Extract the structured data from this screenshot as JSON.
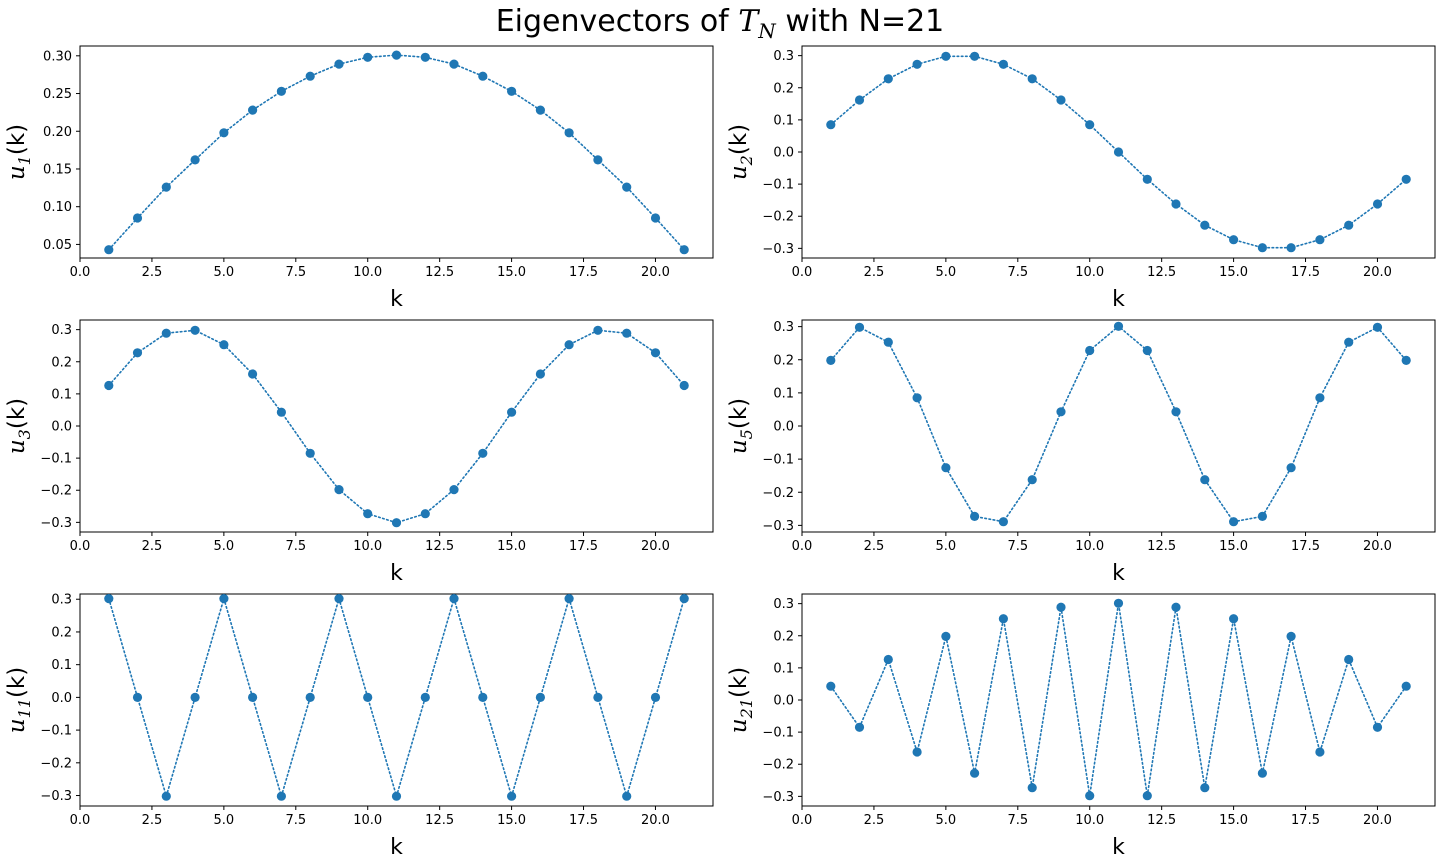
{
  "figure": {
    "title_prefix": "Eigenvectors of ",
    "title_symbol": "T",
    "title_subscript": "N",
    "title_suffix": " with N=21"
  },
  "colors": {
    "series": "#1f77b4",
    "axis": "#000000"
  },
  "chart_data": [
    {
      "type": "line",
      "style": "dotted-with-markers",
      "xlabel": "k",
      "ylabel_symbol": "u",
      "ylabel_subscript": "1",
      "ylabel_suffix": "(k)",
      "xlim": [
        0,
        22
      ],
      "ylim": [
        0.032,
        0.313
      ],
      "xticks": [
        "0.0",
        "2.5",
        "5.0",
        "7.5",
        "10.0",
        "12.5",
        "15.0",
        "17.5",
        "20.0"
      ],
      "yticks": [
        "0.05",
        "0.10",
        "0.15",
        "0.20",
        "0.25",
        "0.30"
      ],
      "x": [
        1,
        2,
        3,
        4,
        5,
        6,
        7,
        8,
        9,
        10,
        11,
        12,
        13,
        14,
        15,
        16,
        17,
        18,
        19,
        20,
        21
      ],
      "y": [
        0.043,
        0.085,
        0.126,
        0.162,
        0.198,
        0.228,
        0.253,
        0.273,
        0.289,
        0.298,
        0.301,
        0.298,
        0.289,
        0.273,
        0.253,
        0.228,
        0.198,
        0.162,
        0.126,
        0.085,
        0.043
      ]
    },
    {
      "type": "line",
      "style": "dotted-with-markers",
      "xlabel": "k",
      "ylabel_symbol": "u",
      "ylabel_subscript": "2",
      "ylabel_suffix": "(k)",
      "xlim": [
        0,
        22
      ],
      "ylim": [
        -0.33,
        0.33
      ],
      "xticks": [
        "0.0",
        "2.5",
        "5.0",
        "7.5",
        "10.0",
        "12.5",
        "15.0",
        "17.5",
        "20.0"
      ],
      "yticks": [
        "−0.3",
        "−0.2",
        "−0.1",
        "0.0",
        "0.1",
        "0.2",
        "0.3"
      ],
      "x": [
        1,
        2,
        3,
        4,
        5,
        6,
        7,
        8,
        9,
        10,
        11,
        12,
        13,
        14,
        15,
        16,
        17,
        18,
        19,
        20,
        21
      ],
      "y": [
        0.085,
        0.162,
        0.228,
        0.273,
        0.298,
        0.298,
        0.273,
        0.228,
        0.162,
        0.085,
        0.0,
        -0.085,
        -0.162,
        -0.228,
        -0.273,
        -0.298,
        -0.298,
        -0.273,
        -0.228,
        -0.162,
        -0.085
      ]
    },
    {
      "type": "line",
      "style": "dotted-with-markers",
      "xlabel": "k",
      "ylabel_symbol": "u",
      "ylabel_subscript": "3",
      "ylabel_suffix": "(k)",
      "xlim": [
        0,
        22
      ],
      "ylim": [
        -0.33,
        0.33
      ],
      "xticks": [
        "0.0",
        "2.5",
        "5.0",
        "7.5",
        "10.0",
        "12.5",
        "15.0",
        "17.5",
        "20.0"
      ],
      "yticks": [
        "−0.3",
        "−0.2",
        "−0.1",
        "0.0",
        "0.1",
        "0.2",
        "0.3"
      ],
      "x": [
        1,
        2,
        3,
        4,
        5,
        6,
        7,
        8,
        9,
        10,
        11,
        12,
        13,
        14,
        15,
        16,
        17,
        18,
        19,
        20,
        21
      ],
      "y": [
        0.126,
        0.228,
        0.289,
        0.298,
        0.253,
        0.162,
        0.043,
        -0.085,
        -0.198,
        -0.273,
        -0.301,
        -0.273,
        -0.198,
        -0.085,
        0.043,
        0.162,
        0.253,
        0.298,
        0.289,
        0.228,
        0.126
      ]
    },
    {
      "type": "line",
      "style": "dotted-with-markers",
      "xlabel": "k",
      "ylabel_symbol": "u",
      "ylabel_subscript": "5",
      "ylabel_suffix": "(k)",
      "xlim": [
        0,
        22
      ],
      "ylim": [
        -0.32,
        0.32
      ],
      "xticks": [
        "0.0",
        "2.5",
        "5.0",
        "7.5",
        "10.0",
        "12.5",
        "15.0",
        "17.5",
        "20.0"
      ],
      "yticks": [
        "−0.3",
        "−0.2",
        "−0.1",
        "0.0",
        "0.1",
        "0.2",
        "0.3"
      ],
      "x": [
        1,
        2,
        3,
        4,
        5,
        6,
        7,
        8,
        9,
        10,
        11,
        12,
        13,
        14,
        15,
        16,
        17,
        18,
        19,
        20,
        21
      ],
      "y": [
        0.198,
        0.298,
        0.253,
        0.085,
        -0.126,
        -0.273,
        -0.289,
        -0.162,
        0.043,
        0.228,
        0.301,
        0.228,
        0.043,
        -0.162,
        -0.289,
        -0.273,
        -0.126,
        0.085,
        0.253,
        0.298,
        0.198
      ]
    },
    {
      "type": "line",
      "style": "dotted-with-markers",
      "xlabel": "k",
      "ylabel_symbol": "u",
      "ylabel_subscript": "11",
      "ylabel_suffix": "(k)",
      "xlim": [
        0,
        22
      ],
      "ylim": [
        -0.332,
        0.316
      ],
      "xticks": [
        "0.0",
        "2.5",
        "5.0",
        "7.5",
        "10.0",
        "12.5",
        "15.0",
        "17.5",
        "20.0"
      ],
      "yticks": [
        "−0.3",
        "−0.2",
        "−0.1",
        "0.0",
        "0.1",
        "0.2",
        "0.3"
      ],
      "x": [
        1,
        2,
        3,
        4,
        5,
        6,
        7,
        8,
        9,
        10,
        11,
        12,
        13,
        14,
        15,
        16,
        17,
        18,
        19,
        20,
        21
      ],
      "y": [
        0.302,
        0.0,
        -0.302,
        0.0,
        0.302,
        0.0,
        -0.302,
        0.0,
        0.302,
        0.0,
        -0.302,
        0.0,
        0.302,
        0.0,
        -0.302,
        0.0,
        0.302,
        0.0,
        -0.302,
        0.0,
        0.302
      ]
    },
    {
      "type": "line",
      "style": "dotted-with-markers",
      "xlabel": "k",
      "ylabel_symbol": "u",
      "ylabel_subscript": "21",
      "ylabel_suffix": "(k)",
      "xlim": [
        0,
        22
      ],
      "ylim": [
        -0.33,
        0.33
      ],
      "xticks": [
        "0.0",
        "2.5",
        "5.0",
        "7.5",
        "10.0",
        "12.5",
        "15.0",
        "17.5",
        "20.0"
      ],
      "yticks": [
        "−0.3",
        "−0.2",
        "−0.1",
        "0.0",
        "0.1",
        "0.2",
        "0.3"
      ],
      "x": [
        1,
        2,
        3,
        4,
        5,
        6,
        7,
        8,
        9,
        10,
        11,
        12,
        13,
        14,
        15,
        16,
        17,
        18,
        19,
        20,
        21
      ],
      "y": [
        0.043,
        -0.085,
        0.126,
        -0.162,
        0.198,
        -0.228,
        0.253,
        -0.273,
        0.289,
        -0.298,
        0.301,
        -0.298,
        0.289,
        -0.273,
        0.253,
        -0.228,
        0.198,
        -0.162,
        0.126,
        -0.085,
        0.043
      ]
    }
  ]
}
